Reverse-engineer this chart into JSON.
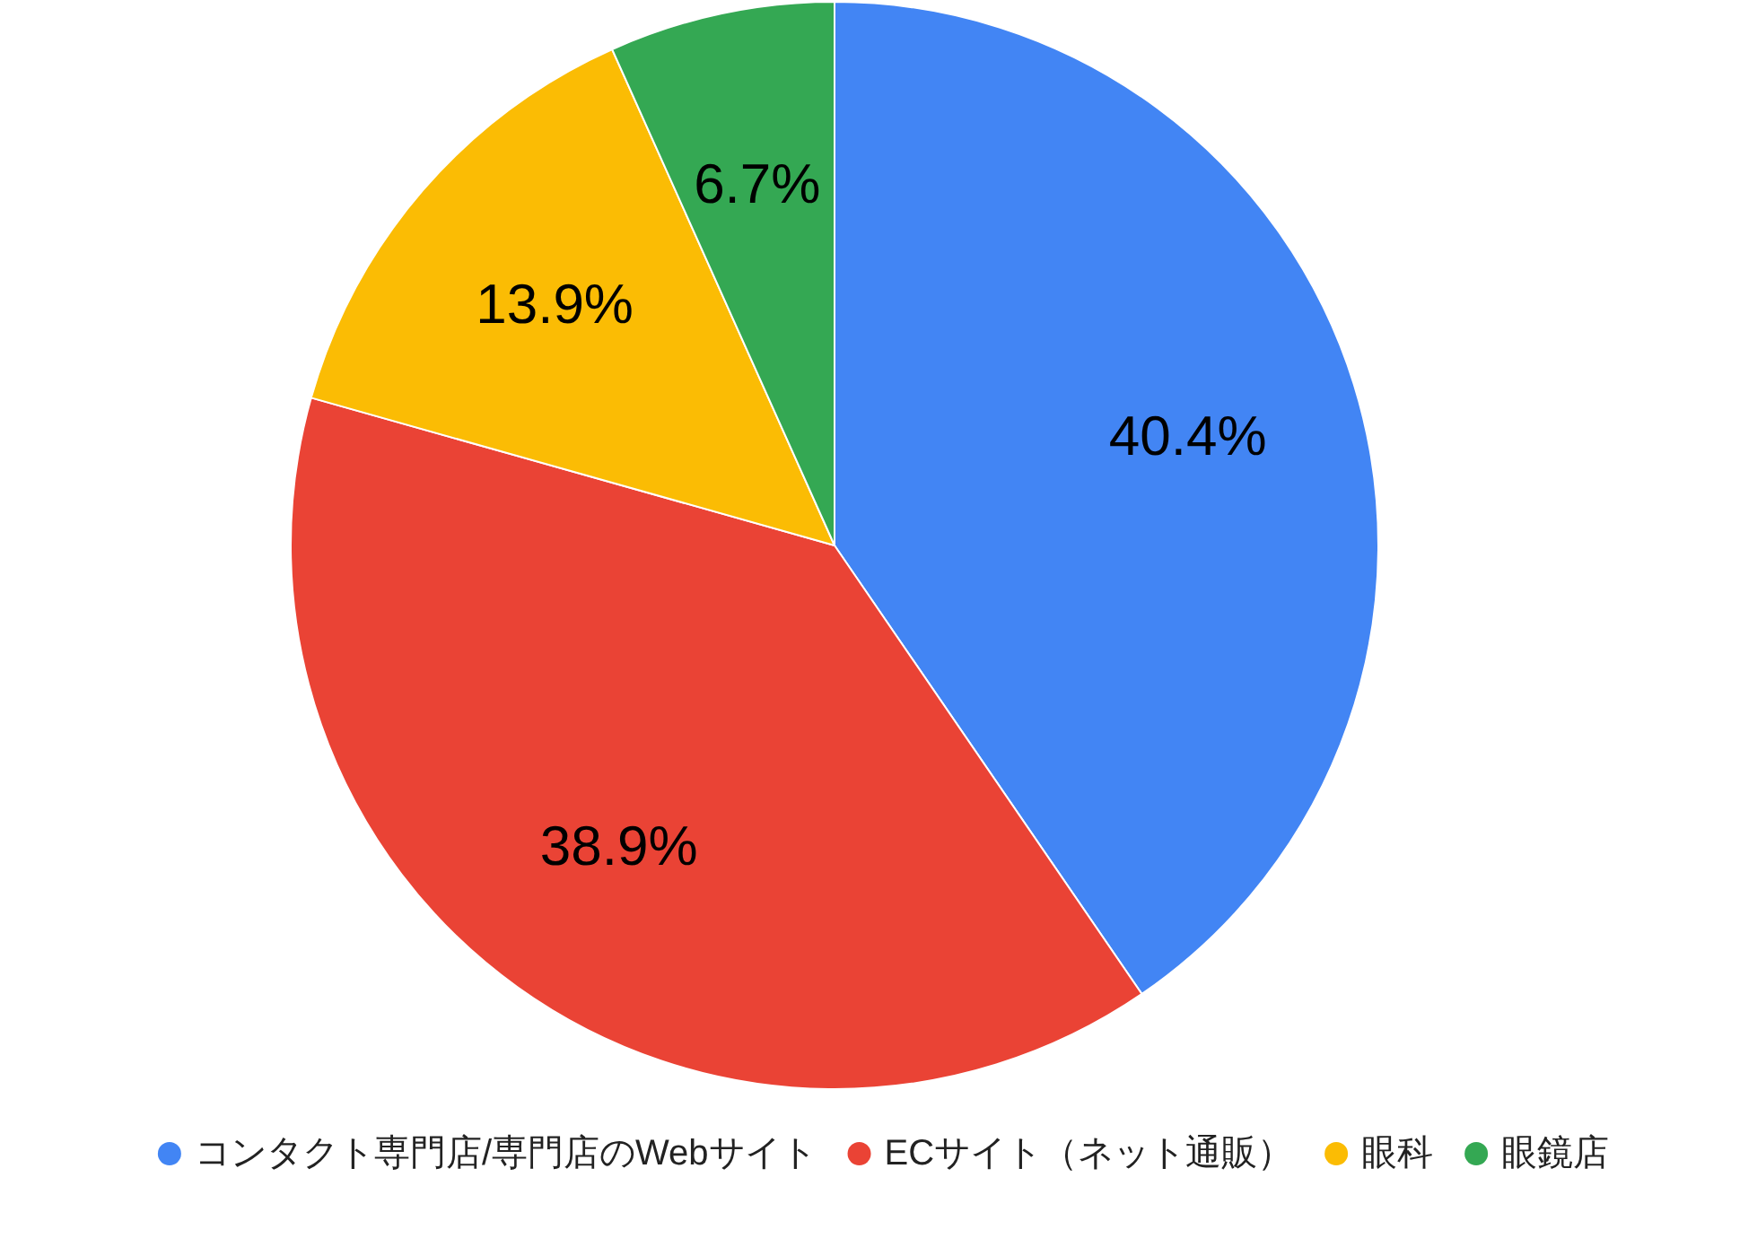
{
  "chart_data": {
    "type": "pie",
    "categories": [
      "コンタクト専門店/専門店のWebサイト",
      "ECサイト（ネット通販）",
      "眼科",
      "眼鏡店"
    ],
    "values": [
      40.4,
      38.9,
      13.9,
      6.7
    ],
    "colors": [
      "#4285f4",
      "#ea4335",
      "#fbbc04",
      "#34a853"
    ],
    "value_labels": [
      "40.4%",
      "38.9%",
      "13.9%",
      "6.7%"
    ],
    "legend": "bottom"
  }
}
